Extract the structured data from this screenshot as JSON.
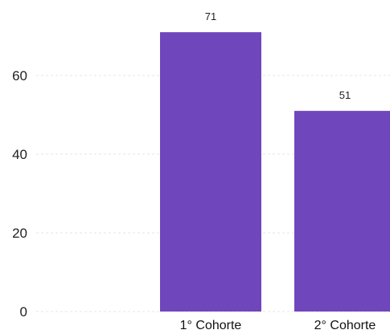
{
  "chart_data": {
    "type": "bar",
    "categories": [
      "1° Cohorte",
      "2° Cohorte"
    ],
    "values": [
      71,
      51
    ],
    "title": "",
    "xlabel": "",
    "ylabel": "",
    "ylim": [
      0,
      80
    ],
    "yticks": [
      0,
      20,
      40,
      60
    ],
    "grid": true,
    "bar_color": "#7046bd"
  }
}
